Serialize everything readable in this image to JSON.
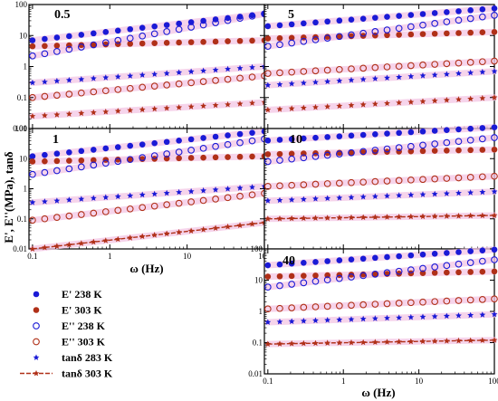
{
  "figure": {
    "ylabel": "E', E''(MPa), tanδ",
    "xlabel_left": "ω (Hz)",
    "xlabel_right": "ω (Hz)"
  },
  "colors": {
    "blue": "#1a1ad6",
    "brown": "#b03018",
    "highlight": "#f3c6e4"
  },
  "legend": [
    {
      "label": "E'  238 K",
      "marker": "filled-circle",
      "color": "#1a1ad6"
    },
    {
      "label": "E'  303 K",
      "marker": "filled-circle",
      "color": "#b03018"
    },
    {
      "label": "E''  238 K",
      "marker": "open-circle",
      "color": "#1a1ad6"
    },
    {
      "label": "E''  303 K",
      "marker": "open-circle",
      "color": "#b03018"
    },
    {
      "label": "tanδ 283 K",
      "marker": "star",
      "color": "#1a1ad6"
    },
    {
      "label": "tanδ 303 K",
      "marker": "line-star",
      "color": "#b03018"
    }
  ],
  "chart_data": [
    {
      "type": "scatter",
      "panel_label": "0.5",
      "xscale": "log",
      "yscale": "log",
      "xlim": [
        0.09,
        100
      ],
      "ylim": [
        0.01,
        100
      ],
      "xticks": [
        0.1,
        1,
        10,
        100
      ],
      "xticklabels": [
        "",
        "",
        "",
        ""
      ],
      "yticks": [
        0.01,
        0.1,
        1,
        10,
        100
      ],
      "yticklabels": [
        "0.01",
        "0.1",
        "1",
        "10",
        "100"
      ],
      "series": [
        {
          "name": "E' 238 K",
          "marker": "filled-circle",
          "color": "#1a1ad6",
          "start": 7,
          "end": 50
        },
        {
          "name": "E' 303 K",
          "marker": "filled-circle",
          "color": "#b03018",
          "start": 4.5,
          "end": 7
        },
        {
          "name": "E'' 238 K",
          "marker": "open-circle",
          "color": "#1a1ad6",
          "start": 2.2,
          "end": 50
        },
        {
          "name": "E'' 303 K",
          "marker": "open-circle",
          "color": "#b03018",
          "start": 0.1,
          "end": 0.5
        },
        {
          "name": "tanδ 283 K",
          "marker": "star",
          "color": "#1a1ad6",
          "start": 0.3,
          "end": 1.0
        },
        {
          "name": "tanδ 303 K",
          "marker": "star",
          "color": "#b03018",
          "start": 0.025,
          "end": 0.07
        }
      ]
    },
    {
      "type": "scatter",
      "panel_label": "5",
      "xscale": "log",
      "yscale": "log",
      "xlim": [
        0.09,
        100
      ],
      "ylim": [
        0.01,
        100
      ],
      "xticks": [
        0.1,
        1,
        10,
        100
      ],
      "xticklabels": [
        "",
        "",
        "",
        ""
      ],
      "yticks": [
        0.01,
        0.1,
        1,
        10,
        100
      ],
      "yticklabels": [
        "",
        "",
        "",
        "",
        ""
      ],
      "series": [
        {
          "name": "E' 238 K",
          "marker": "filled-circle",
          "color": "#1a1ad6",
          "start": 20,
          "end": 75
        },
        {
          "name": "E' 303 K",
          "marker": "filled-circle",
          "color": "#b03018",
          "start": 8,
          "end": 13
        },
        {
          "name": "E'' 238 K",
          "marker": "open-circle",
          "color": "#1a1ad6",
          "start": 4.5,
          "end": 45
        },
        {
          "name": "E'' 303 K",
          "marker": "open-circle",
          "color": "#b03018",
          "start": 0.6,
          "end": 1.5
        },
        {
          "name": "tanδ 283 K",
          "marker": "star",
          "color": "#1a1ad6",
          "start": 0.25,
          "end": 0.7
        },
        {
          "name": "tanδ 303 K",
          "marker": "star",
          "color": "#b03018",
          "start": 0.04,
          "end": 0.1
        }
      ]
    },
    {
      "type": "scatter",
      "panel_label": "1",
      "xscale": "log",
      "yscale": "log",
      "xlim": [
        0.09,
        100
      ],
      "ylim": [
        0.01,
        100
      ],
      "xticks": [
        0.1,
        1,
        10,
        100
      ],
      "xticklabels": [
        "0.1",
        "1",
        "10",
        "100"
      ],
      "yticks": [
        0.01,
        0.1,
        1,
        10,
        100
      ],
      "yticklabels": [
        "0.01",
        "0.1",
        "1",
        "10",
        "100"
      ],
      "series": [
        {
          "name": "E' 238 K",
          "marker": "filled-circle",
          "color": "#1a1ad6",
          "start": 12,
          "end": 80
        },
        {
          "name": "E' 303 K",
          "marker": "filled-circle",
          "color": "#b03018",
          "start": 8,
          "end": 12
        },
        {
          "name": "E'' 238 K",
          "marker": "open-circle",
          "color": "#1a1ad6",
          "start": 3,
          "end": 45
        },
        {
          "name": "E'' 303 K",
          "marker": "open-circle",
          "color": "#b03018",
          "start": 0.09,
          "end": 0.7
        },
        {
          "name": "tanδ 283 K",
          "marker": "star",
          "color": "#1a1ad6",
          "start": 0.35,
          "end": 1.2
        },
        {
          "name": "tanδ 303 K",
          "marker": "line-star",
          "color": "#b03018",
          "start": 0.01,
          "end": 0.075
        }
      ]
    },
    {
      "type": "scatter",
      "panel_label": "10",
      "xscale": "log",
      "yscale": "log",
      "xlim": [
        0.09,
        100
      ],
      "ylim": [
        0.01,
        100
      ],
      "xticks": [
        0.1,
        1,
        10,
        100
      ],
      "xticklabels": [
        "",
        "",
        "",
        ""
      ],
      "yticks": [
        0.01,
        0.1,
        1,
        10,
        100
      ],
      "yticklabels": [
        "",
        "",
        "",
        "",
        ""
      ],
      "series": [
        {
          "name": "E' 238 K",
          "marker": "filled-circle",
          "color": "#1a1ad6",
          "start": 40,
          "end": 110
        },
        {
          "name": "E' 303 K",
          "marker": "filled-circle",
          "color": "#b03018",
          "start": 14,
          "end": 20
        },
        {
          "name": "E'' 238 K",
          "marker": "open-circle",
          "color": "#1a1ad6",
          "start": 8,
          "end": 50
        },
        {
          "name": "E'' 303 K",
          "marker": "open-circle",
          "color": "#b03018",
          "start": 1.2,
          "end": 2.6
        },
        {
          "name": "tanδ 283 K",
          "marker": "star",
          "color": "#1a1ad6",
          "start": 0.4,
          "end": 0.8
        },
        {
          "name": "tanδ 303 K",
          "marker": "line-star",
          "color": "#b03018",
          "start": 0.1,
          "end": 0.13
        }
      ]
    },
    {
      "type": "scatter",
      "panel_label": "40",
      "xscale": "log",
      "yscale": "log",
      "xlim": [
        0.09,
        100
      ],
      "ylim": [
        0.01,
        100
      ],
      "xticks": [
        0.1,
        1,
        10,
        100
      ],
      "xticklabels": [
        "0.1",
        "1",
        "10",
        "100"
      ],
      "yticks": [
        0.01,
        0.1,
        1,
        10,
        100
      ],
      "yticklabels": [
        "0.01",
        "0.1",
        "1",
        "10",
        "100"
      ],
      "series": [
        {
          "name": "E' 238 K",
          "marker": "filled-circle",
          "color": "#1a1ad6",
          "start": 30,
          "end": 95
        },
        {
          "name": "E' 303 K",
          "marker": "filled-circle",
          "color": "#b03018",
          "start": 13,
          "end": 19
        },
        {
          "name": "E'' 238 K",
          "marker": "open-circle",
          "color": "#1a1ad6",
          "start": 6,
          "end": 45
        },
        {
          "name": "E'' 303 K",
          "marker": "open-circle",
          "color": "#b03018",
          "start": 1.2,
          "end": 2.5
        },
        {
          "name": "tanδ 283 K",
          "marker": "star",
          "color": "#1a1ad6",
          "start": 0.45,
          "end": 0.8
        },
        {
          "name": "tanδ 303 K",
          "marker": "line-star",
          "color": "#b03018",
          "start": 0.09,
          "end": 0.12
        }
      ]
    }
  ]
}
